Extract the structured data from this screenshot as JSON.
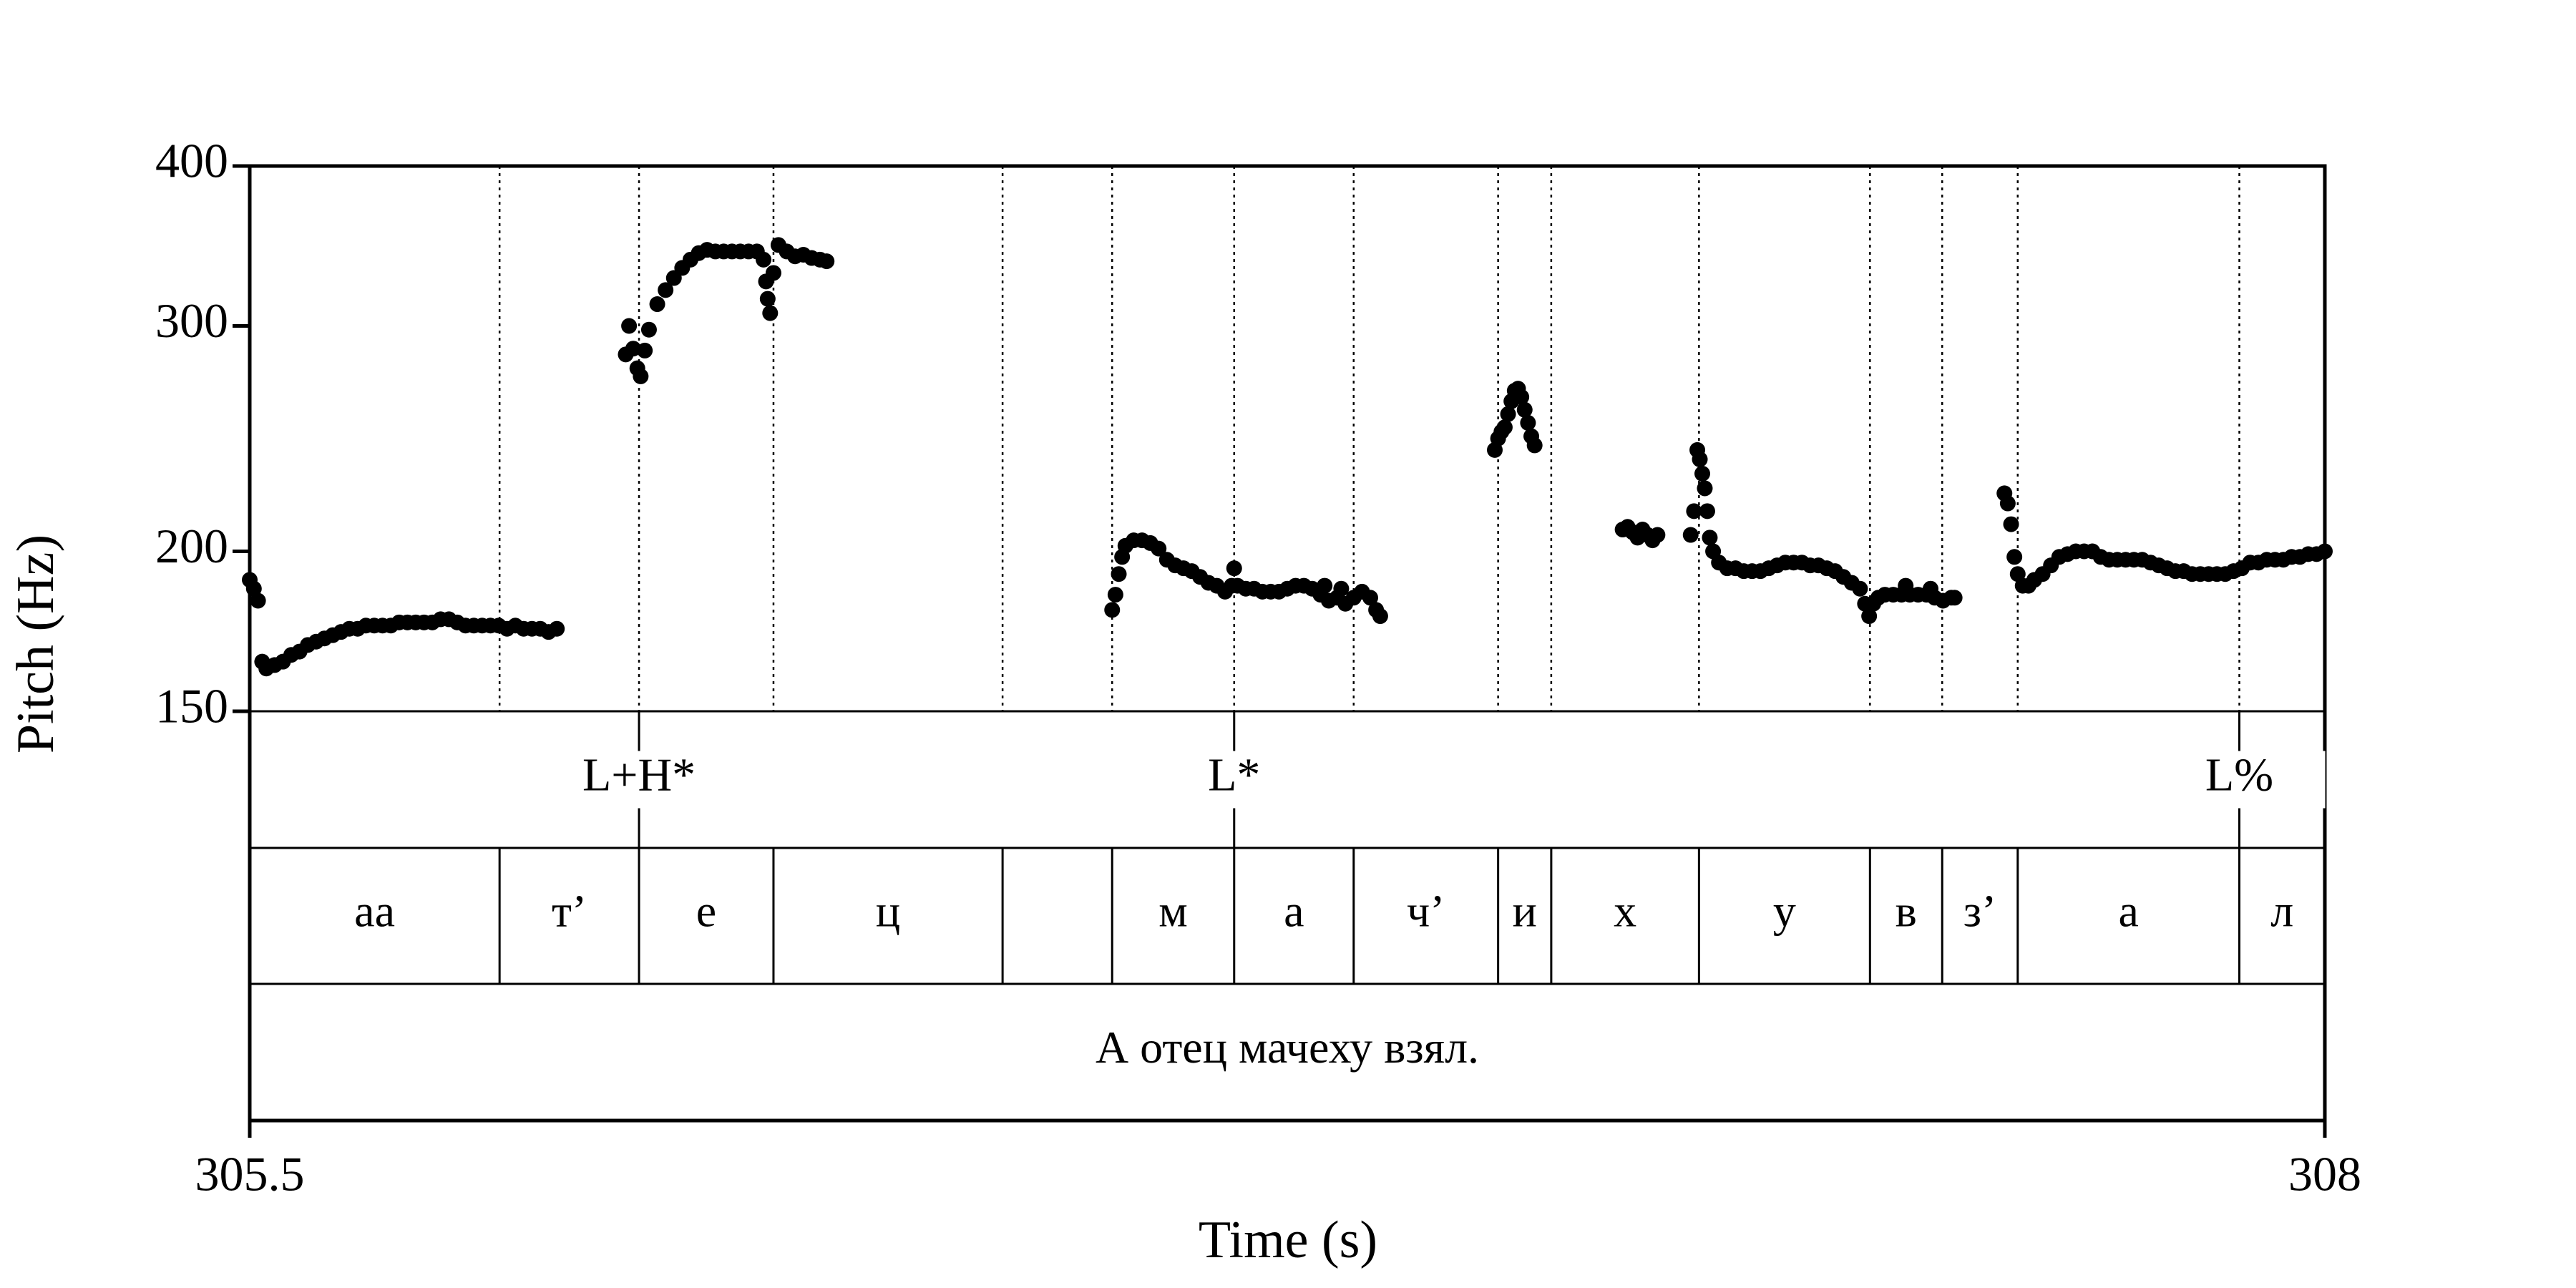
{
  "chart_data": {
    "type": "scatter",
    "xlabel": "Time (s)",
    "ylabel": "Pitch (Hz)",
    "xlim": [
      305.5,
      308
    ],
    "xticks": [
      305.5,
      308
    ],
    "ylim": [
      150,
      400
    ],
    "yticks": [
      150,
      200,
      300,
      400
    ],
    "y_scale": "log",
    "color": "#000000",
    "x": [
      305.5,
      305.505,
      305.51,
      305.515,
      305.52,
      305.53,
      305.54,
      305.55,
      305.56,
      305.57,
      305.58,
      305.59,
      305.6,
      305.61,
      305.62,
      305.63,
      305.64,
      305.65,
      305.66,
      305.67,
      305.68,
      305.69,
      305.7,
      305.71,
      305.72,
      305.73,
      305.74,
      305.75,
      305.76,
      305.77,
      305.78,
      305.79,
      305.8,
      305.81,
      305.82,
      305.83,
      305.84,
      305.85,
      305.86,
      305.87,
      305.953,
      305.957,
      305.962,
      305.967,
      305.971,
      305.976,
      305.981,
      305.991,
      306.001,
      306.011,
      306.021,
      306.031,
      306.041,
      306.051,
      306.061,
      306.071,
      306.081,
      306.091,
      306.101,
      306.111,
      306.119,
      306.122,
      306.124,
      306.127,
      306.131,
      306.137,
      306.147,
      306.157,
      306.167,
      306.177,
      306.187,
      306.195,
      306.539,
      306.543,
      306.547,
      306.551,
      306.555,
      306.565,
      306.575,
      306.585,
      306.595,
      306.605,
      306.615,
      306.625,
      306.635,
      306.645,
      306.655,
      306.665,
      306.675,
      306.683,
      306.686,
      306.69,
      306.7,
      306.71,
      306.72,
      306.73,
      306.74,
      306.75,
      306.76,
      306.77,
      306.78,
      306.79,
      306.795,
      306.8,
      306.81,
      306.815,
      306.82,
      306.83,
      306.84,
      306.85,
      306.857,
      306.862,
      307.0,
      307.004,
      307.008,
      307.012,
      307.016,
      307.02,
      307.024,
      307.028,
      307.032,
      307.036,
      307.04,
      307.044,
      307.048,
      307.154,
      307.16,
      307.166,
      307.172,
      307.178,
      307.184,
      307.19,
      307.196,
      307.236,
      307.24,
      307.244,
      307.247,
      307.25,
      307.253,
      307.256,
      307.259,
      307.263,
      307.27,
      307.28,
      307.29,
      307.3,
      307.31,
      307.32,
      307.33,
      307.34,
      307.35,
      307.36,
      307.37,
      307.38,
      307.39,
      307.4,
      307.41,
      307.42,
      307.43,
      307.44,
      307.446,
      307.451,
      307.456,
      307.462,
      307.47,
      307.48,
      307.49,
      307.495,
      307.5,
      307.51,
      307.52,
      307.525,
      307.53,
      307.54,
      307.55,
      307.554,
      307.614,
      307.618,
      307.622,
      307.626,
      307.63,
      307.636,
      307.643,
      307.65,
      307.66,
      307.67,
      307.68,
      307.69,
      307.7,
      307.71,
      307.72,
      307.73,
      307.74,
      307.75,
      307.76,
      307.77,
      307.78,
      307.79,
      307.8,
      307.81,
      307.82,
      307.83,
      307.84,
      307.85,
      307.86,
      307.87,
      307.88,
      307.89,
      307.9,
      307.91,
      307.92,
      307.93,
      307.94,
      307.95,
      307.96,
      307.97,
      307.98,
      307.99,
      308.0
    ],
    "values": [
      190,
      187,
      183,
      164,
      162,
      163,
      164,
      166,
      167,
      169,
      170,
      171,
      172,
      173,
      174,
      174,
      175,
      175,
      175,
      175,
      176,
      176,
      176,
      176,
      176,
      177,
      177,
      176,
      175,
      175,
      175,
      175,
      175,
      174,
      175,
      174,
      174,
      174,
      173,
      174,
      285,
      300,
      288,
      278,
      274,
      287,
      298,
      312,
      320,
      327,
      333,
      338,
      342,
      344,
      343,
      343,
      343,
      343,
      343,
      343,
      338,
      325,
      315,
      307,
      330,
      347,
      343,
      340,
      341,
      339,
      338,
      337,
      180,
      185,
      192,
      198,
      202,
      204,
      204,
      203,
      201,
      197,
      195,
      194,
      193,
      191,
      189,
      188,
      186,
      188,
      194,
      188,
      187,
      187,
      186,
      186,
      186,
      187,
      188,
      188,
      187,
      185,
      188,
      183,
      184,
      187,
      182,
      184,
      186,
      184,
      180,
      178,
      240,
      245,
      248,
      250,
      256,
      262,
      267,
      268,
      264,
      258,
      252,
      246,
      242,
      208,
      209,
      207,
      205,
      208,
      206,
      204,
      206,
      206,
      215,
      240,
      236,
      230,
      224,
      215,
      205,
      200,
      196,
      194,
      194,
      193,
      193,
      193,
      194,
      195,
      196,
      196,
      196,
      195,
      195,
      194,
      193,
      191,
      189,
      187,
      182,
      178,
      182,
      184,
      185,
      185,
      185,
      188,
      185,
      185,
      185,
      187,
      184,
      183,
      184,
      184,
      222,
      218,
      210,
      198,
      192,
      188,
      188,
      190,
      192,
      195,
      198,
      199,
      200,
      200,
      200,
      198,
      197,
      197,
      197,
      197,
      197,
      196,
      195,
      194,
      193,
      193,
      192,
      192,
      192,
      192,
      192,
      193,
      194,
      196,
      196,
      197,
      197,
      197,
      198,
      198,
      199,
      199,
      200
    ],
    "tones": {
      "times": [
        305.969,
        306.686,
        307.897
      ],
      "labels": [
        "L+H*",
        "L*",
        "L%"
      ]
    },
    "phones": {
      "boundaries": [
        305.801,
        305.969,
        306.131,
        306.407,
        306.539,
        306.686,
        306.83,
        307.004,
        307.068,
        307.246,
        307.452,
        307.539,
        307.63,
        307.897
      ],
      "labels": [
        "aa",
        "т’",
        "е",
        "ц",
        null,
        "м",
        "а",
        "ч’",
        "и",
        "х",
        "у",
        "в",
        "з’",
        "а",
        "л"
      ]
    },
    "words": {
      "labels": [
        "А отец мачеху взял."
      ]
    }
  }
}
